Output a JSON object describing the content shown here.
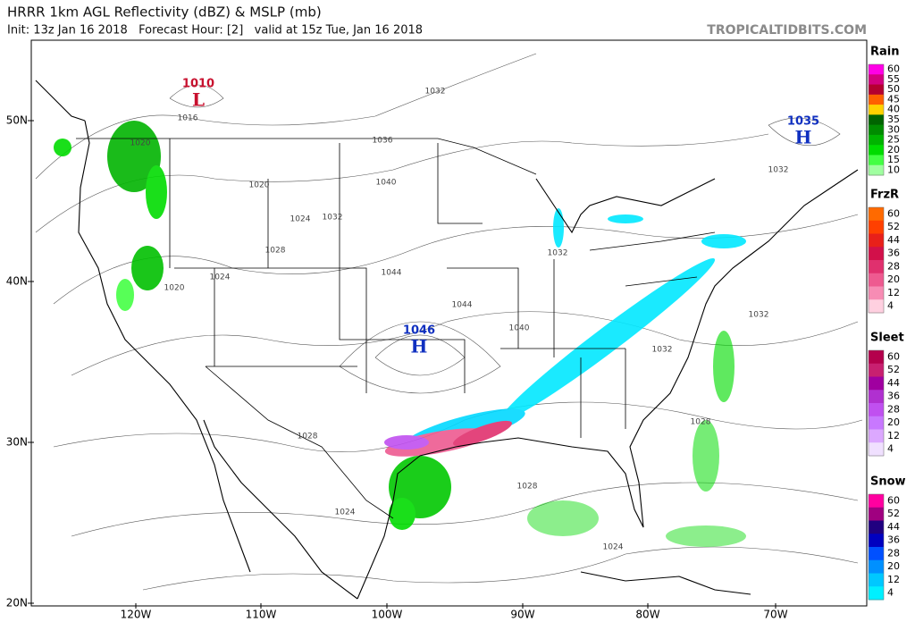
{
  "header": {
    "title": "HRRR 1km AGL Reflectivity (dBZ) & MSLP (mb)",
    "subtitle": "Init: 13z Jan 16 2018   Forecast Hour: [2]   valid at 15z Tue, Jan 16 2018",
    "site": "TROPICALTIDBITS.COM"
  },
  "map": {
    "lat_labels": [
      "50N",
      "40N",
      "30N",
      "20N"
    ],
    "lon_labels": [
      "120W",
      "110W",
      "100W",
      "90W",
      "80W",
      "70W"
    ],
    "pressure_centers": [
      {
        "value": "1010",
        "letter": "L",
        "color": "#c8102e"
      },
      {
        "value": "1046",
        "letter": "H",
        "color": "#1030c0"
      },
      {
        "value": "1035",
        "letter": "H",
        "color": "#1030c0"
      }
    ],
    "isobar_labels": [
      "1016",
      "1020",
      "1020",
      "1024",
      "1032",
      "1036",
      "1032",
      "1040",
      "1028",
      "1024",
      "1020",
      "1044",
      "1044",
      "1040",
      "1032",
      "1032",
      "1032",
      "1032",
      "1028",
      "1028",
      "1028",
      "1024",
      "1024"
    ]
  },
  "legend": [
    {
      "title": "Rain",
      "labels": [
        60,
        55,
        50,
        45,
        40,
        35,
        30,
        25,
        20,
        15,
        10
      ],
      "colors": [
        "#ff00e6",
        "#d3007f",
        "#b40030",
        "#ff6000",
        "#ffd200",
        "#006400",
        "#008c00",
        "#00b400",
        "#00dc00",
        "#44ff44",
        "#a0ffa0"
      ]
    },
    {
      "title": "FrzR",
      "labels": [
        60,
        52,
        44,
        36,
        28,
        20,
        12,
        4
      ],
      "colors": [
        "#ff6a00",
        "#ff4000",
        "#e8201a",
        "#d2104a",
        "#e0306e",
        "#ee5a90",
        "#f78cb4",
        "#ffd0e0"
      ]
    },
    {
      "title": "Sleet",
      "labels": [
        60,
        52,
        44,
        36,
        28,
        20,
        12,
        4
      ],
      "colors": [
        "#b4004c",
        "#c82070",
        "#a000a0",
        "#b030d0",
        "#c050f0",
        "#c878ff",
        "#dca8ff",
        "#f0e0ff"
      ]
    },
    {
      "title": "Snow",
      "labels": [
        60,
        52,
        44,
        36,
        28,
        20,
        12,
        4
      ],
      "colors": [
        "#ff00a0",
        "#a00080",
        "#200080",
        "#0000c0",
        "#0050ff",
        "#0090ff",
        "#00c8ff",
        "#00f0ff"
      ]
    }
  ]
}
